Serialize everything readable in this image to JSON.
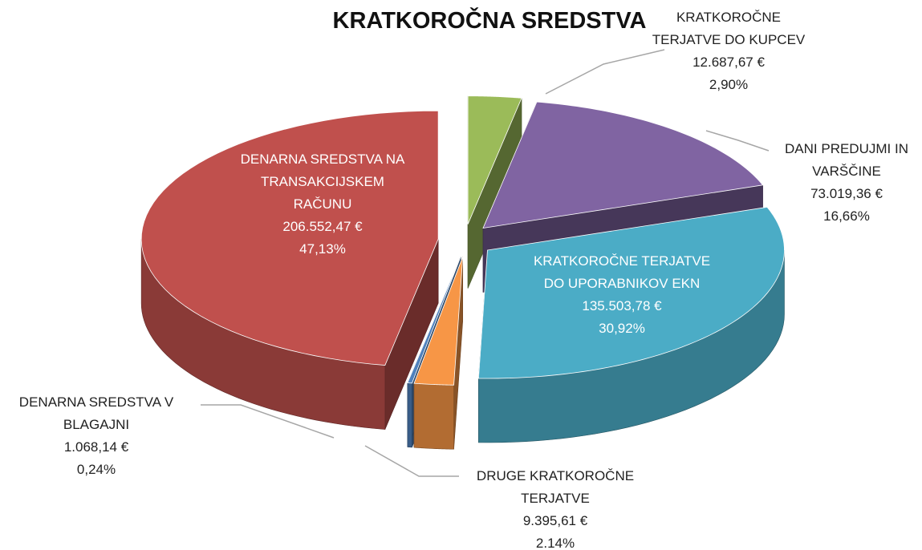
{
  "chart_data": {
    "type": "pie",
    "title": "KRATKOROČNA SREDSTVA",
    "categories": [
      "KRATKOROČNE TERJATVE DO KUPCEV",
      "DANI PREDUJMI IN VARŠČINE",
      "KRATKOROČNE TERJATVE DO UPORABNIKOV EKN",
      "DRUGE KRATKOROČNE TERJATVE",
      "DENARNA SREDSTVA V BLAGAJNI",
      "DENARNA SREDSTVA NA TRANSAKCIJSKEM RAČUNU"
    ],
    "values": [
      12687.67,
      73019.36,
      135503.78,
      9395.61,
      1068.14,
      206552.47
    ],
    "value_labels": [
      "12.687,67 €",
      "73.019,36 €",
      "135.503,78 €",
      "9.395,61 €",
      "1.068,14 €",
      "206.552,47 €"
    ],
    "percentages": [
      2.9,
      16.66,
      30.92,
      2.14,
      0.24,
      47.13
    ],
    "percentage_labels": [
      "2,90%",
      "16,66%",
      "30,92%",
      "2.14%",
      "0,24%",
      "47,13%"
    ],
    "colors": [
      "#9bbb59",
      "#8064a2",
      "#4bacc6",
      "#f79646",
      "#4f81bd",
      "#c0504d"
    ]
  }
}
